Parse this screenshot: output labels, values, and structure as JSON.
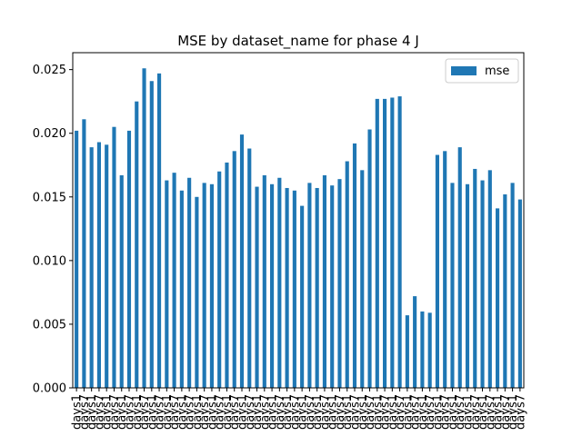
{
  "chart_data": {
    "type": "bar",
    "title": "MSE by dataset_name for phase 4 J",
    "series": [
      {
        "name": "mse",
        "color": "#1f77b4",
        "values": [
          0.0202,
          0.0211,
          0.0189,
          0.0193,
          0.0191,
          0.0205,
          0.0167,
          0.0202,
          0.0225,
          0.0251,
          0.0241,
          0.0247,
          0.0163,
          0.0169,
          0.0155,
          0.0165,
          0.015,
          0.0161,
          0.016,
          0.017,
          0.0177,
          0.0186,
          0.0199,
          0.0188,
          0.0158,
          0.0167,
          0.016,
          0.0165,
          0.0157,
          0.0155,
          0.0143,
          0.0161,
          0.0157,
          0.0167,
          0.0159,
          0.0164,
          0.0178,
          0.0192,
          0.0171,
          0.0203,
          0.0227,
          0.0227,
          0.0228,
          0.0229,
          0.0057,
          0.0072,
          0.006,
          0.0059,
          0.0183,
          0.0186,
          0.0161,
          0.0189,
          0.016,
          0.0172,
          0.0163,
          0.0171,
          0.0141,
          0.0152,
          0.0161,
          0.0148
        ]
      }
    ],
    "categories": [
      "days1",
      "days7",
      "days1",
      "days7",
      "days1",
      "days7",
      "days1",
      "days7",
      "days1",
      "days7",
      "days1",
      "days7",
      "days1",
      "days7",
      "days1",
      "days7",
      "days1",
      "days7",
      "days1",
      "days7",
      "days1",
      "days7",
      "days1",
      "days7",
      "days1",
      "days7",
      "days1",
      "days7",
      "days1",
      "days7",
      "days1",
      "days7",
      "days1",
      "days7",
      "days1",
      "days7",
      "days1",
      "days7",
      "days1",
      "days7",
      "days1",
      "days7",
      "days1",
      "days7",
      "days1",
      "days7",
      "days1",
      "days7",
      "days1",
      "days7",
      "days1",
      "days7",
      "days1",
      "days7",
      "days1",
      "days7",
      "days1",
      "days7",
      "days1",
      "days7"
    ],
    "ylim": [
      0,
      0.02633
    ],
    "yticks": [
      {
        "value": 0,
        "label": "0.000"
      },
      {
        "value": 0.005,
        "label": "0.005"
      },
      {
        "value": 0.01,
        "label": "0.010"
      },
      {
        "value": 0.015,
        "label": "0.015"
      },
      {
        "value": 0.02,
        "label": "0.020"
      },
      {
        "value": 0.025,
        "label": "0.025"
      }
    ],
    "legend": "upper right"
  }
}
